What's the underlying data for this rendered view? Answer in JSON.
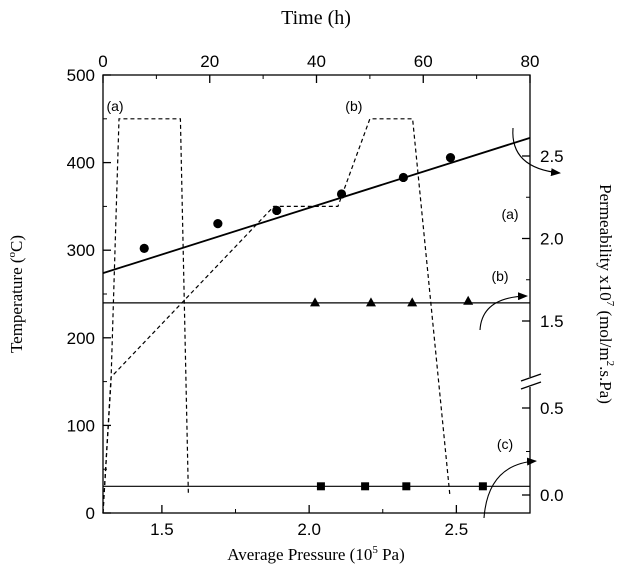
{
  "chart_data": {
    "type": "line",
    "title": "",
    "top_axis": {
      "label": "Time (h)",
      "range": [
        0,
        80
      ],
      "ticks": [
        "0",
        "20",
        "40",
        "60",
        "80"
      ],
      "tick_values": [
        0,
        20,
        40,
        60,
        80
      ]
    },
    "bottom_axis": {
      "label": "Average Pressure (10",
      "label_sup": "5",
      "label_end": " Pa)",
      "range": [
        1.3,
        2.75
      ],
      "ticks": [
        "1.5",
        "2.0",
        "2.5"
      ],
      "tick_values": [
        1.5,
        2.0,
        2.5
      ]
    },
    "left_axis": {
      "label": "Temperature (",
      "label_sup": "o",
      "label_end": "C)",
      "range": [
        0,
        500
      ],
      "ticks": [
        "0",
        "100",
        "200",
        "300",
        "400",
        "500"
      ],
      "tick_values": [
        0,
        100,
        200,
        300,
        400,
        500
      ]
    },
    "right_axis": {
      "label": "Permeability x10",
      "label_sup": "7",
      "label_end": " (mol/m",
      "label_sup2": "2",
      "label_end2": ".s.Pa)",
      "upper_ticks": [
        "1.5",
        "2.0",
        "2.5"
      ],
      "upper_values": [
        1.5,
        2.0,
        2.5
      ],
      "lower_ticks": [
        "0.0",
        "0.5"
      ],
      "lower_values": [
        0.0,
        0.5
      ],
      "break": true
    },
    "temperature_profiles": [
      {
        "label": "(a)",
        "time_h": [
          0,
          1.5,
          3,
          14.5,
          16
        ],
        "temp_c": [
          0,
          150,
          450,
          450,
          20
        ]
      },
      {
        "label": "(b)",
        "time_h": [
          0,
          1.5,
          32,
          44,
          50,
          58,
          65
        ],
        "temp_c": [
          0,
          155,
          350,
          350,
          450,
          450,
          20
        ]
      }
    ],
    "permeability_series": [
      {
        "label": "(a)",
        "marker": "circle",
        "pressure": [
          1.44,
          1.69,
          1.89,
          2.11,
          2.32,
          2.48
        ],
        "permeability": [
          1.94,
          2.09,
          2.17,
          2.27,
          2.37,
          2.49
        ],
        "fit": {
          "x": [
            1.3,
            2.75
          ],
          "y": [
            1.79,
            2.61
          ]
        }
      },
      {
        "label": "(b)",
        "marker": "triangle",
        "pressure": [
          2.02,
          2.21,
          2.35,
          2.54
        ],
        "permeability": [
          1.61,
          1.61,
          1.61,
          1.62
        ],
        "fit": {
          "x": [
            1.3,
            2.75
          ],
          "y": [
            1.61,
            1.61
          ]
        }
      },
      {
        "label": "(c)",
        "marker": "square",
        "pressure": [
          2.04,
          2.19,
          2.33,
          2.59
        ],
        "permeability": [
          0.05,
          0.05,
          0.05,
          0.05
        ],
        "fit": {
          "x": [
            1.3,
            2.75
          ],
          "y": [
            0.05,
            0.05
          ]
        }
      }
    ]
  }
}
